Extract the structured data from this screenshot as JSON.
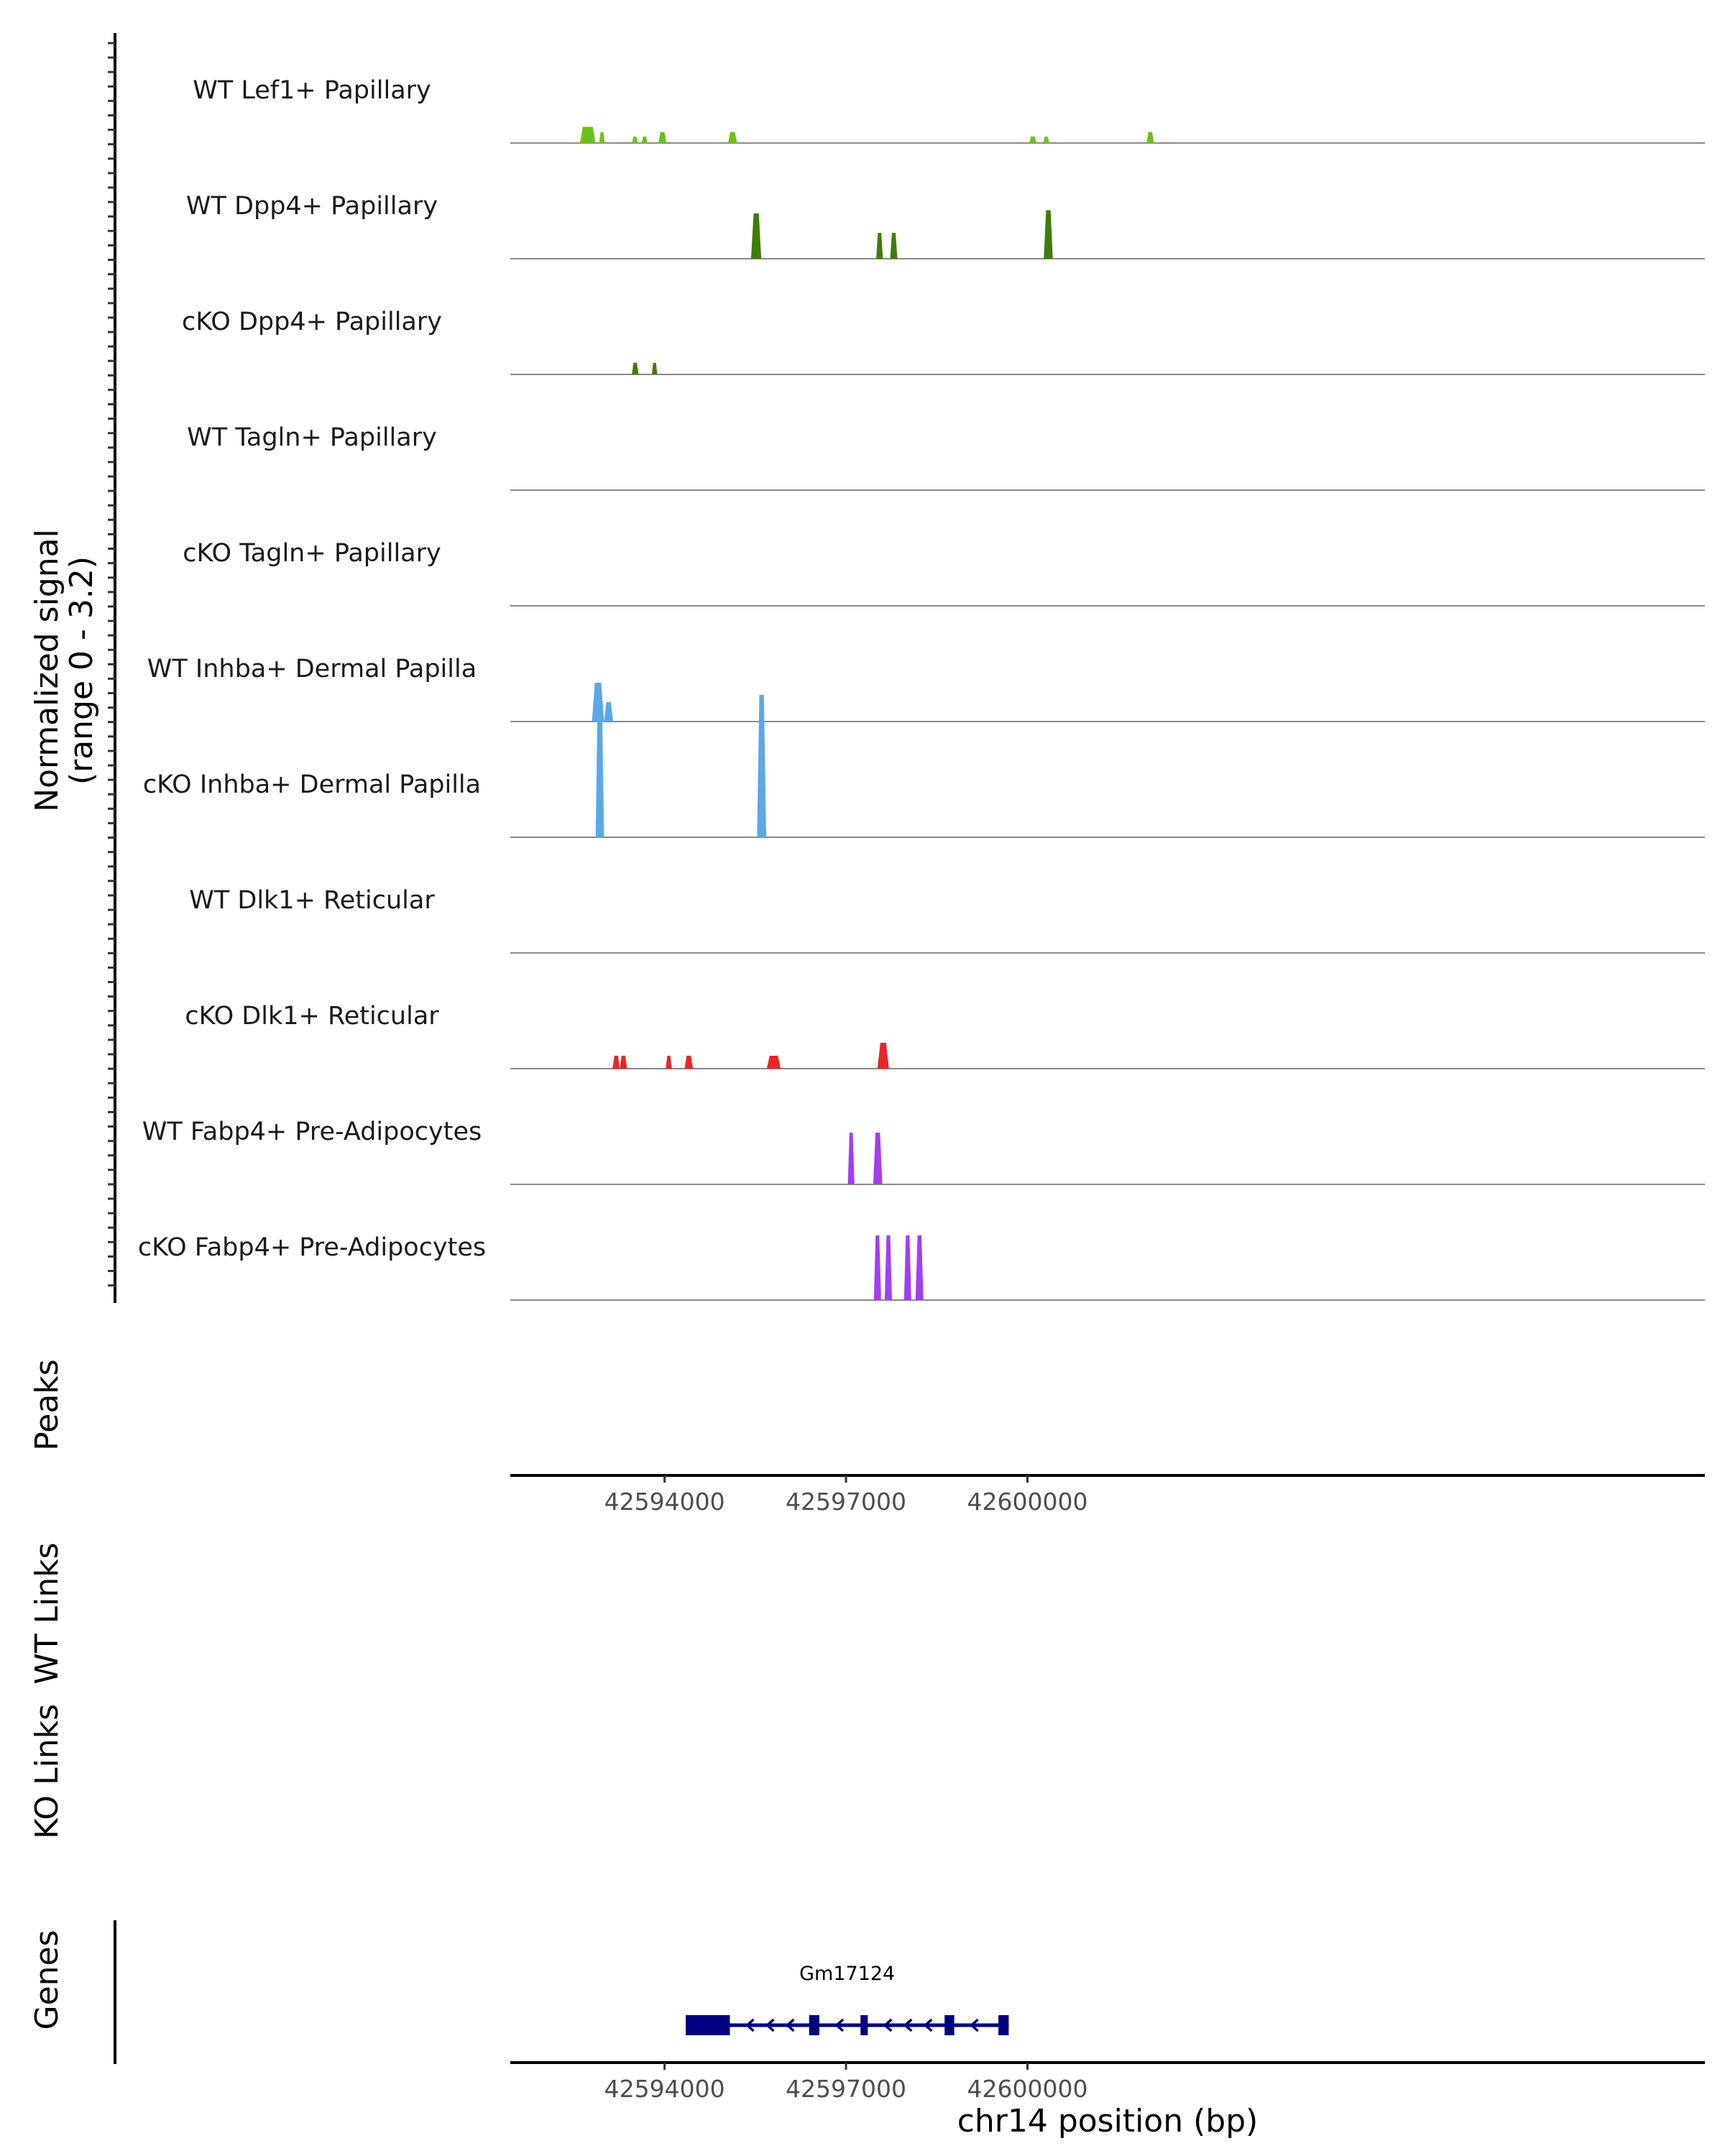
{
  "chart_data": {
    "type": "genome-coverage",
    "x_axis": {
      "title": "chr14 position (bp)",
      "xlim": [
        42591450,
        42611200
      ],
      "ticks": [
        42594000,
        42597000,
        42600000
      ],
      "tick_labels": [
        "42594000",
        "42597000",
        "42600000"
      ]
    },
    "coverage_panel": {
      "ylabel_line1": "Normalized signal",
      "ylabel_line2": "(range 0 - 3.2)",
      "ylim": [
        0,
        3.2
      ],
      "tracks": [
        {
          "label": "WT Lef1+ Papillary",
          "color": "#6ac11c",
          "peaks": [
            {
              "x1": 42592600,
              "x2": 42592860,
              "h": 0.25
            },
            {
              "x1": 42592920,
              "x2": 42593010,
              "h": 0.17
            },
            {
              "x1": 42593460,
              "x2": 42593560,
              "h": 0.1
            },
            {
              "x1": 42593620,
              "x2": 42593720,
              "h": 0.1
            },
            {
              "x1": 42593900,
              "x2": 42594030,
              "h": 0.17
            },
            {
              "x1": 42595050,
              "x2": 42595200,
              "h": 0.17
            },
            {
              "x1": 42600030,
              "x2": 42600150,
              "h": 0.1
            },
            {
              "x1": 42600260,
              "x2": 42600360,
              "h": 0.1
            },
            {
              "x1": 42601970,
              "x2": 42602090,
              "h": 0.17
            }
          ]
        },
        {
          "label": "WT Dpp4+ Papillary",
          "color": "#3f7d0a",
          "peaks": [
            {
              "x1": 42595430,
              "x2": 42595600,
              "h": 0.7
            },
            {
              "x1": 42597500,
              "x2": 42597610,
              "h": 0.4
            },
            {
              "x1": 42597730,
              "x2": 42597850,
              "h": 0.4
            },
            {
              "x1": 42600270,
              "x2": 42600420,
              "h": 0.75
            }
          ]
        },
        {
          "label": "cKO Dpp4+ Papillary",
          "color": "#3f7d0a",
          "peaks": [
            {
              "x1": 42593460,
              "x2": 42593570,
              "h": 0.18
            },
            {
              "x1": 42593790,
              "x2": 42593880,
              "h": 0.18
            }
          ]
        },
        {
          "label": "WT Tagln+ Papillary",
          "color": "#6ac11c",
          "peaks": []
        },
        {
          "label": "cKO Tagln+ Papillary",
          "color": "#6ac11c",
          "peaks": []
        },
        {
          "label": "WT Inhba+ Dermal Papilla",
          "color": "#5aa8e6",
          "peaks": [
            {
              "x1": 42592800,
              "x2": 42593000,
              "h": 0.6
            },
            {
              "x1": 42593000,
              "x2": 42593150,
              "h": 0.3
            }
          ]
        },
        {
          "label": "cKO Inhba+ Dermal Papilla",
          "color": "#5aa8e6",
          "peaks": [
            {
              "x1": 42592860,
              "x2": 42593000,
              "h": 2.2
            },
            {
              "x1": 42595530,
              "x2": 42595680,
              "h": 2.2
            }
          ]
        },
        {
          "label": "WT Dlk1+ Reticular",
          "color": "#e8262a",
          "peaks": []
        },
        {
          "label": "cKO Dlk1+ Reticular",
          "color": "#e8262a",
          "peaks": [
            {
              "x1": 42593140,
              "x2": 42593260,
              "h": 0.2
            },
            {
              "x1": 42593260,
              "x2": 42593380,
              "h": 0.2
            },
            {
              "x1": 42594020,
              "x2": 42594120,
              "h": 0.2
            },
            {
              "x1": 42594330,
              "x2": 42594470,
              "h": 0.2
            },
            {
              "x1": 42595690,
              "x2": 42595920,
              "h": 0.2
            },
            {
              "x1": 42597520,
              "x2": 42597710,
              "h": 0.4
            }
          ]
        },
        {
          "label": "WT Fabp4+ Pre-Adipocytes",
          "color": "#a13ff0",
          "peaks": [
            {
              "x1": 42597030,
              "x2": 42597140,
              "h": 0.8
            },
            {
              "x1": 42597450,
              "x2": 42597600,
              "h": 0.8
            }
          ]
        },
        {
          "label": "cKO Fabp4+ Pre-Adipocytes",
          "color": "#a13ff0",
          "peaks": [
            {
              "x1": 42597460,
              "x2": 42597580,
              "h": 1.0
            },
            {
              "x1": 42597640,
              "x2": 42597760,
              "h": 1.0
            },
            {
              "x1": 42597960,
              "x2": 42598080,
              "h": 1.0
            },
            {
              "x1": 42598150,
              "x2": 42598280,
              "h": 1.0
            }
          ]
        }
      ]
    },
    "peaks_panel": {
      "ylabel": "Peaks"
    },
    "wt_links_panel": {
      "ylabel": "WT Links"
    },
    "ko_links_panel": {
      "ylabel": "KO Links"
    },
    "genes_panel": {
      "ylabel": "Genes",
      "gene": {
        "name": "Gm17124",
        "color": "#000080",
        "strand": "-",
        "start": 42594350,
        "end": 42599690,
        "exons": [
          [
            42594350,
            42595080
          ],
          [
            42596390,
            42596560
          ],
          [
            42597240,
            42597360
          ],
          [
            42598630,
            42598790
          ],
          [
            42599520,
            42599690
          ]
        ]
      }
    }
  }
}
